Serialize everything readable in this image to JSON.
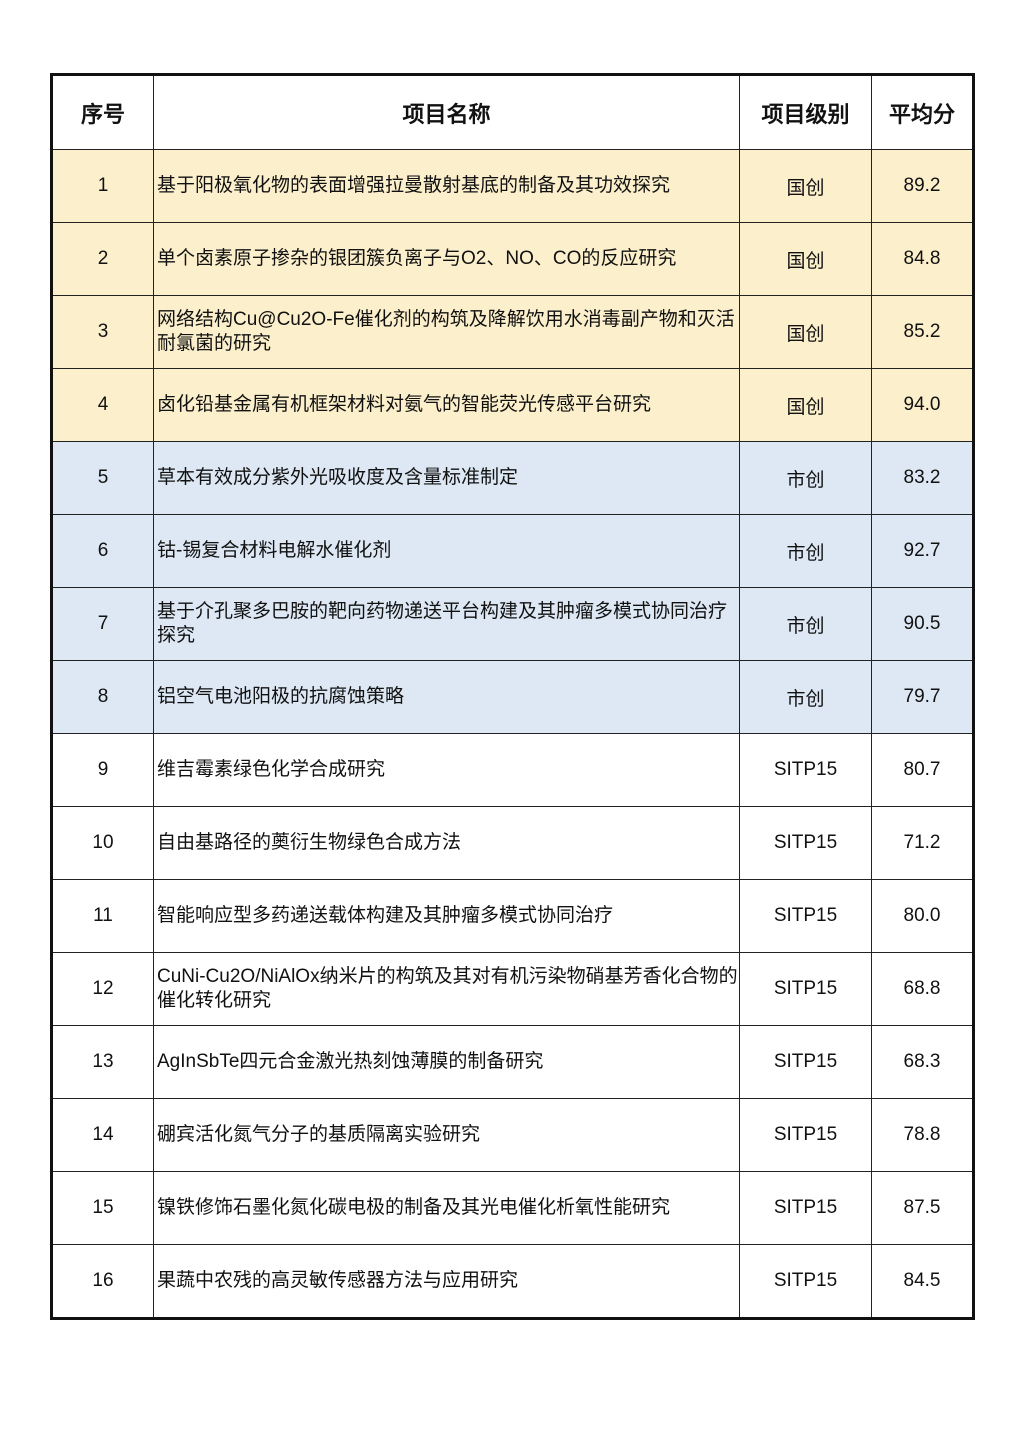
{
  "headers": [
    "序号",
    "项目名称",
    "项目级别",
    "平均分"
  ],
  "colors": {
    "国创": "#FCEFCB",
    "市创": "#DDE8F4",
    "SITP15": "#FFFFFF"
  },
  "rows": [
    {
      "no": "1",
      "name": "基于阳极氧化物的表面增强拉曼散射基底的制备及其功效探究",
      "level": "国创",
      "score": "89.2"
    },
    {
      "no": "2",
      "name": "单个卤素原子掺杂的银团簇负离子与O2、NO、CO的反应研究",
      "level": "国创",
      "score": "84.8"
    },
    {
      "no": "3",
      "name": "网络结构Cu@Cu2O-Fe催化剂的构筑及降解饮用水消毒副产物和灭活耐氯菌的研究",
      "level": "国创",
      "score": "85.2"
    },
    {
      "no": "4",
      "name": "卤化铅基金属有机框架材料对氨气的智能荧光传感平台研究",
      "level": "国创",
      "score": "94.0"
    },
    {
      "no": "5",
      "name": "草本有效成分紫外光吸收度及含量标准制定",
      "level": "市创",
      "score": "83.2"
    },
    {
      "no": "6",
      "name": "钴-锡复合材料电解水催化剂",
      "level": "市创",
      "score": "92.7"
    },
    {
      "no": "7",
      "name": "基于介孔聚多巴胺的靶向药物递送平台构建及其肿瘤多模式协同治疗探究",
      "level": "市创",
      "score": "90.5"
    },
    {
      "no": "8",
      "name": "铝空气电池阳极的抗腐蚀策略",
      "level": "市创",
      "score": "79.7"
    },
    {
      "no": "9",
      "name": "维吉霉素绿色化学合成研究",
      "level": "SITP15",
      "score": "80.7"
    },
    {
      "no": "10",
      "name": "自由基路径的薁衍生物绿色合成方法",
      "level": "SITP15",
      "score": "71.2"
    },
    {
      "no": "11",
      "name": "智能响应型多药递送载体构建及其肿瘤多模式协同治疗",
      "level": "SITP15",
      "score": "80.0"
    },
    {
      "no": "12",
      "name": "CuNi-Cu2O/NiAlOx纳米片的构筑及其对有机污染物硝基芳香化合物的催化转化研究",
      "level": "SITP15",
      "score": "68.8"
    },
    {
      "no": "13",
      "name": "AgInSbTe四元合金激光热刻蚀薄膜的制备研究",
      "level": "SITP15",
      "score": "68.3"
    },
    {
      "no": "14",
      "name": "硼宾活化氮气分子的基质隔离实验研究",
      "level": "SITP15",
      "score": "78.8"
    },
    {
      "no": "15",
      "name": "镍铁修饰石墨化氮化碳电极的制备及其光电催化析氧性能研究",
      "level": "SITP15",
      "score": "87.5"
    },
    {
      "no": "16",
      "name": "果蔬中农残的高灵敏传感器方法与应用研究",
      "level": "SITP15",
      "score": "84.5"
    }
  ]
}
